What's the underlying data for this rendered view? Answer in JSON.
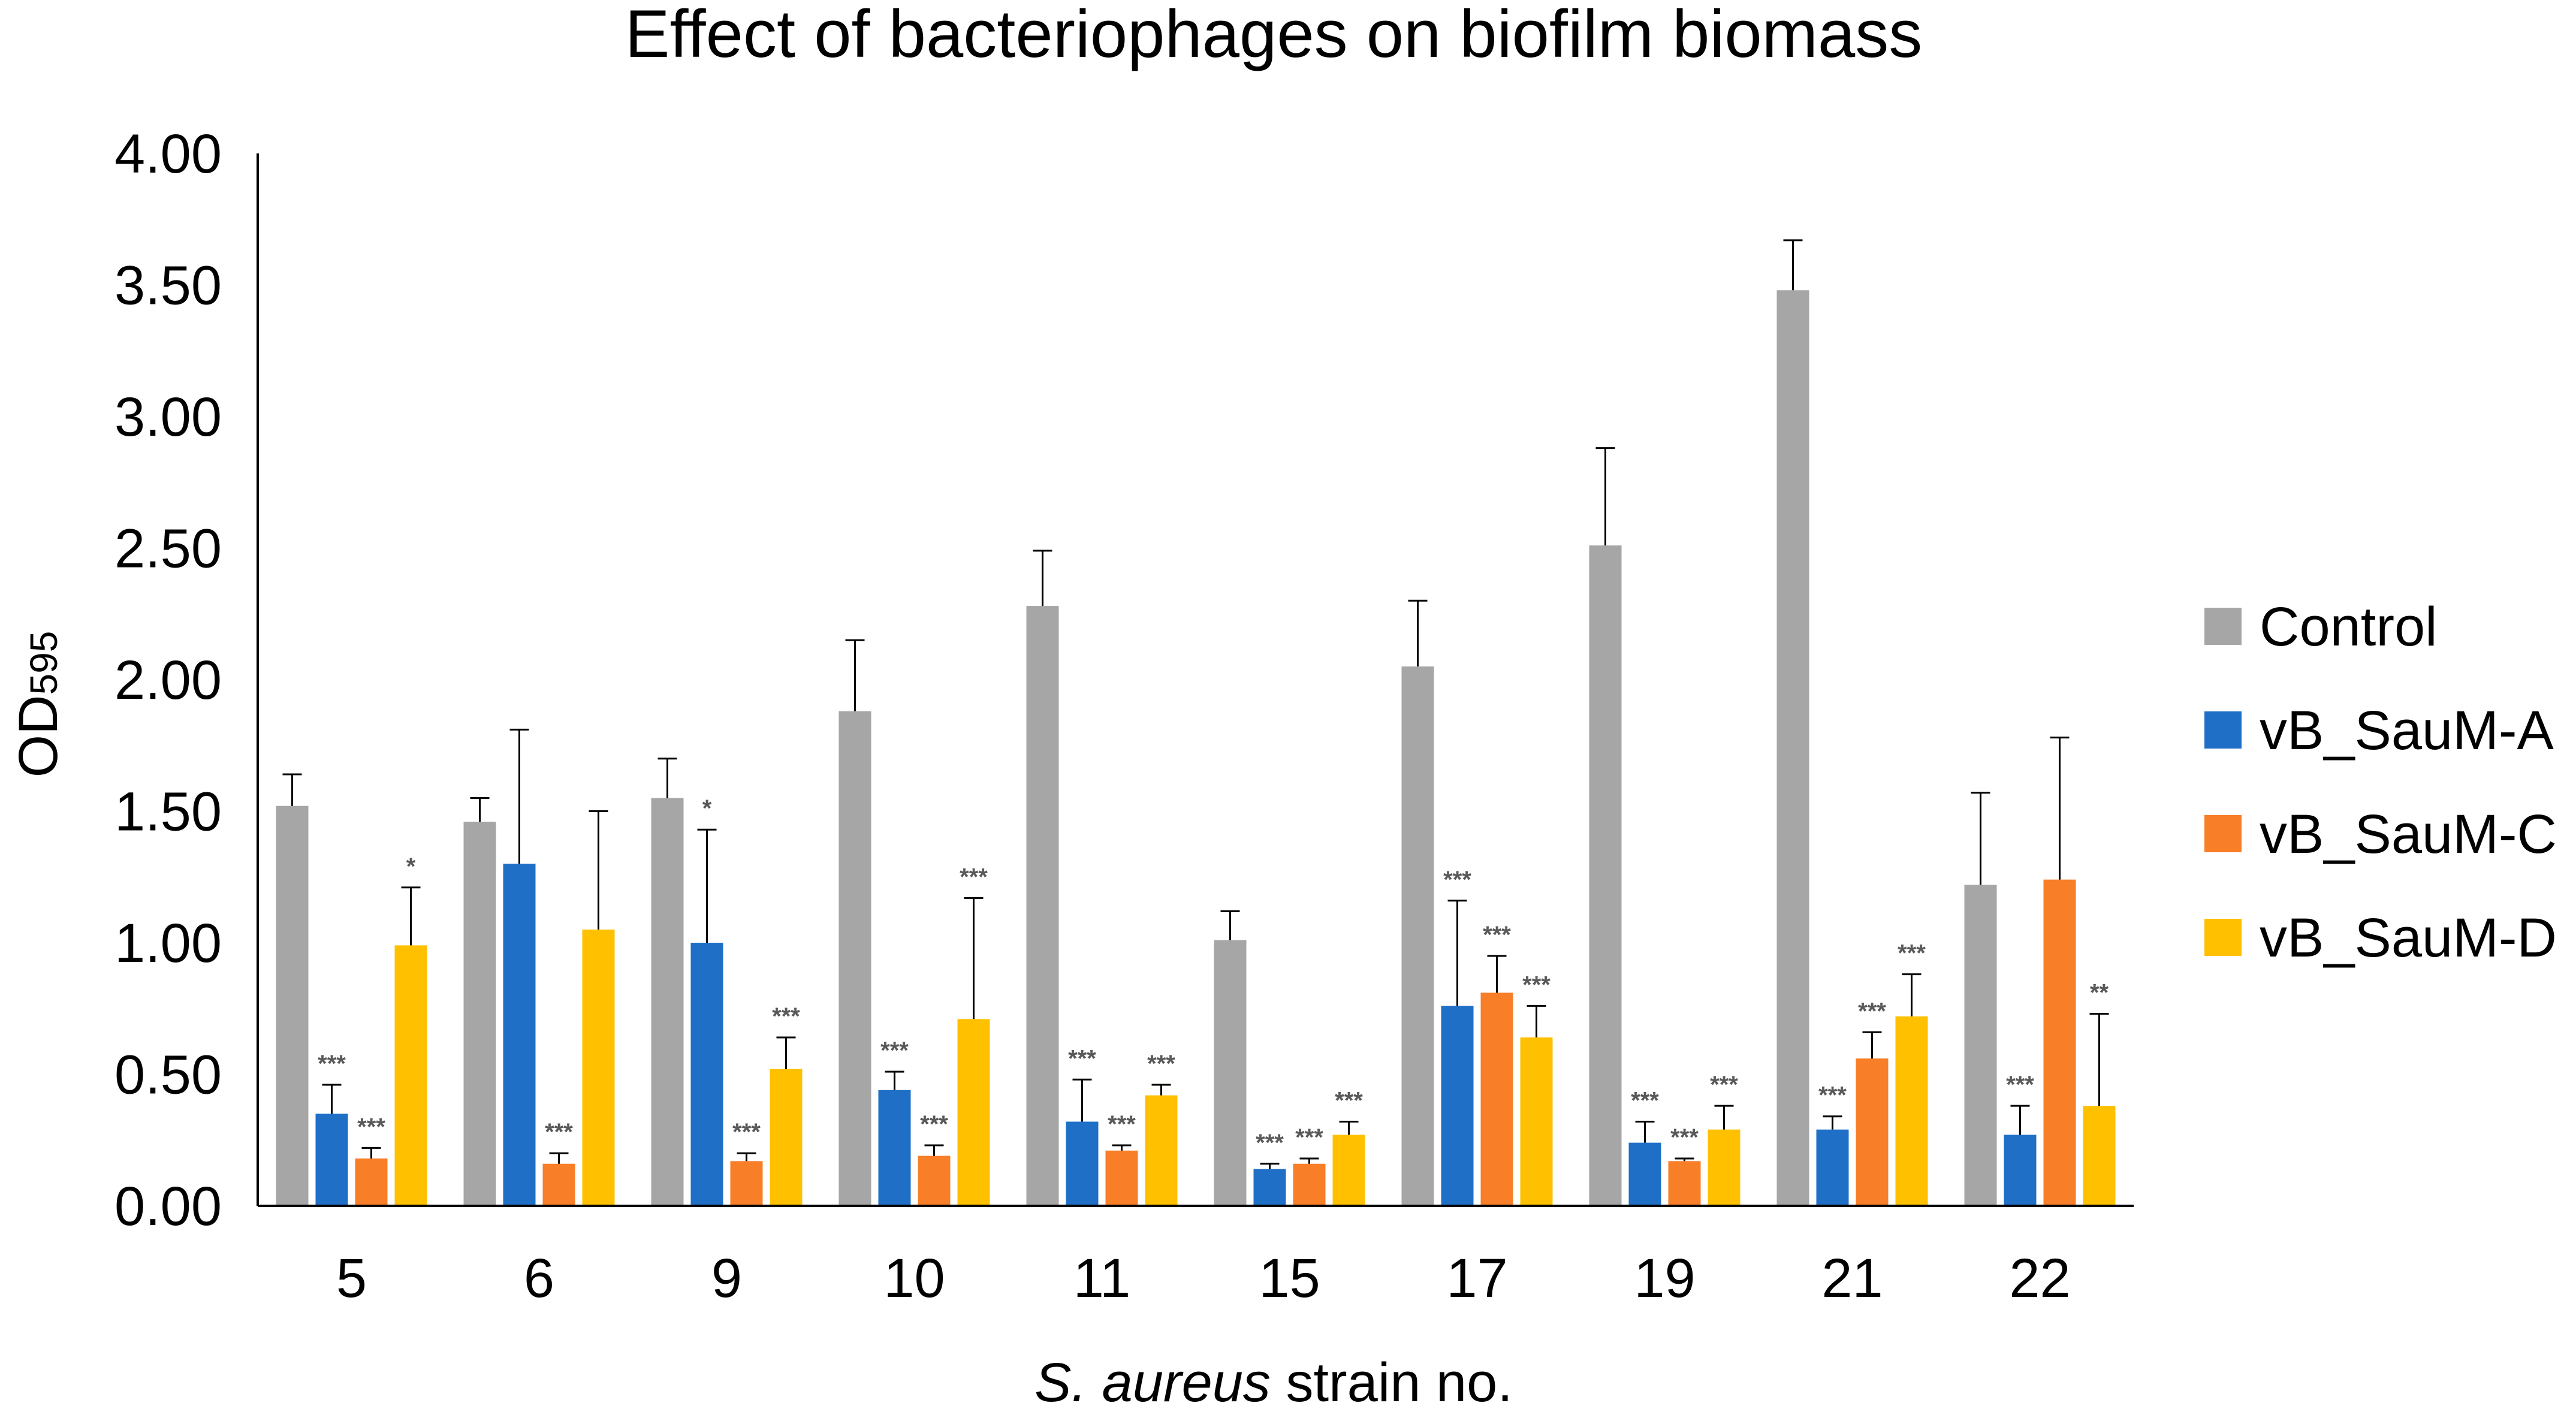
{
  "chart_data": {
    "type": "bar",
    "title": "Effect of bacteriophages on biofilm biomass",
    "xlabel_italic": "S. aureus",
    "xlabel_rest": " strain no.",
    "ylabel_main": "OD",
    "ylabel_sub": "595",
    "ylim": [
      0,
      4
    ],
    "yticks": [
      "0.00",
      "0.50",
      "1.00",
      "1.50",
      "2.00",
      "2.50",
      "3.00",
      "3.50",
      "4.00"
    ],
    "ytick_values": [
      0,
      0.5,
      1.0,
      1.5,
      2.0,
      2.5,
      3.0,
      3.5,
      4.0
    ],
    "grid": false,
    "legend_position": "right",
    "categories": [
      "5",
      "6",
      "9",
      "10",
      "11",
      "15",
      "17",
      "19",
      "21",
      "22"
    ],
    "series": [
      {
        "name": "Control",
        "color": "#A6A6A6",
        "values": [
          1.52,
          1.46,
          1.55,
          1.88,
          2.28,
          1.01,
          2.05,
          2.51,
          3.48,
          1.22
        ],
        "errors": [
          0.12,
          0.09,
          0.15,
          0.27,
          0.21,
          0.11,
          0.25,
          0.37,
          0.19,
          0.35
        ],
        "sig": [
          "",
          "",
          "",
          "",
          "",
          "",
          "",
          "",
          "",
          ""
        ]
      },
      {
        "name": "vB_SauM-A",
        "color": "#1F6FC6",
        "values": [
          0.35,
          1.3,
          1.0,
          0.44,
          0.32,
          0.14,
          0.76,
          0.24,
          0.29,
          0.27
        ],
        "errors": [
          0.11,
          0.51,
          0.43,
          0.07,
          0.16,
          0.02,
          0.4,
          0.08,
          0.05,
          0.11
        ],
        "sig": [
          "***",
          "",
          "*",
          "***",
          "***",
          "***",
          "***",
          "***",
          "***",
          "***"
        ]
      },
      {
        "name": "vB_SauM-C",
        "color": "#F87E28",
        "values": [
          0.18,
          0.16,
          0.17,
          0.19,
          0.21,
          0.16,
          0.81,
          0.17,
          0.56,
          1.24
        ],
        "errors": [
          0.04,
          0.04,
          0.03,
          0.04,
          0.02,
          0.02,
          0.14,
          0.01,
          0.1,
          0.54
        ],
        "sig": [
          "***",
          "***",
          "***",
          "***",
          "***",
          "***",
          "***",
          "***",
          "***",
          ""
        ]
      },
      {
        "name": "vB_SauM-D",
        "color": "#FFC000",
        "values": [
          0.99,
          1.05,
          0.52,
          0.71,
          0.42,
          0.27,
          0.64,
          0.29,
          0.72,
          0.38
        ],
        "errors": [
          0.22,
          0.45,
          0.12,
          0.46,
          0.04,
          0.05,
          0.12,
          0.09,
          0.16,
          0.35
        ],
        "sig": [
          "*",
          "",
          "***",
          "***",
          "***",
          "***",
          "***",
          "***",
          "***",
          "**"
        ]
      }
    ]
  }
}
